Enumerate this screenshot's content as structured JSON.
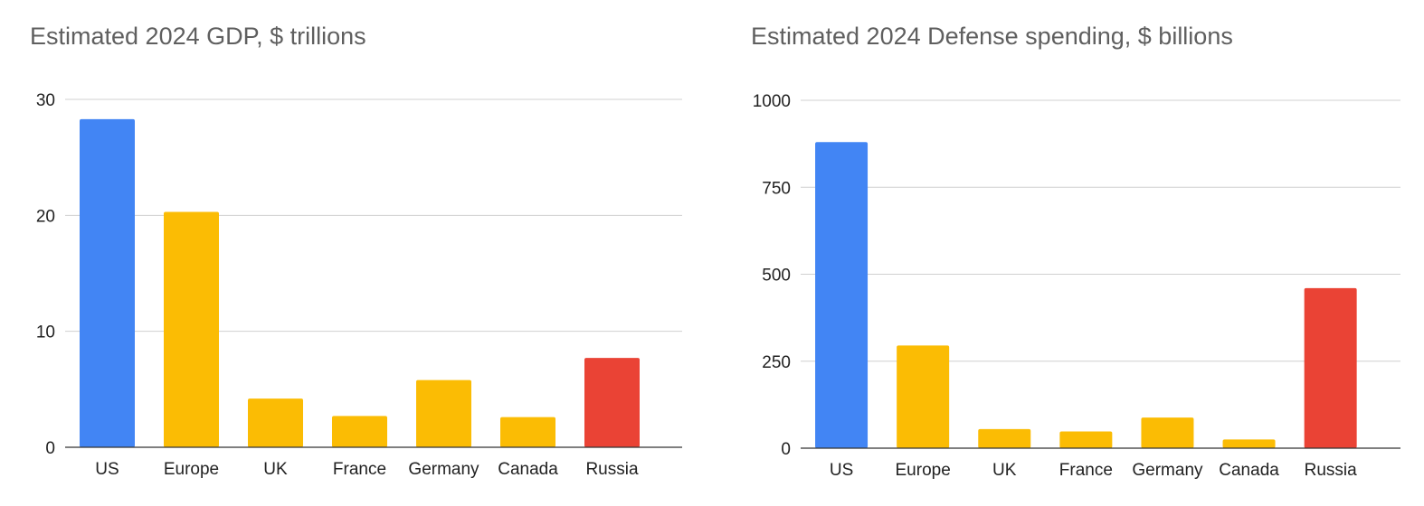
{
  "colors": {
    "us": "#4285f4",
    "europe_group": "#fbbc04",
    "russia": "#ea4335"
  },
  "chart_data": [
    {
      "type": "bar",
      "title": "Estimated 2024 GDP, $ trillions",
      "xlabel": "",
      "ylabel": "",
      "categories": [
        "US",
        "Europe",
        "UK",
        "France",
        "Germany",
        "Canada",
        "Russia"
      ],
      "values": [
        28.3,
        20.3,
        4.2,
        2.7,
        5.8,
        2.6,
        7.7
      ],
      "bar_colors": [
        "#4285f4",
        "#fbbc04",
        "#fbbc04",
        "#fbbc04",
        "#fbbc04",
        "#fbbc04",
        "#ea4335"
      ],
      "ylim": [
        0,
        30
      ],
      "yticks": [
        0,
        10,
        20,
        30
      ],
      "grid": true,
      "legend": "none"
    },
    {
      "type": "bar",
      "title": "Estimated 2024 Defense spending, $ billions",
      "xlabel": "",
      "ylabel": "",
      "categories": [
        "US",
        "Europe",
        "UK",
        "France",
        "Germany",
        "Canada",
        "Russia"
      ],
      "values": [
        880,
        295,
        55,
        48,
        88,
        25,
        460
      ],
      "bar_colors": [
        "#4285f4",
        "#fbbc04",
        "#fbbc04",
        "#fbbc04",
        "#fbbc04",
        "#fbbc04",
        "#ea4335"
      ],
      "ylim": [
        0,
        1000
      ],
      "yticks": [
        0,
        250,
        500,
        750,
        1000
      ],
      "grid": true,
      "legend": "none"
    }
  ]
}
